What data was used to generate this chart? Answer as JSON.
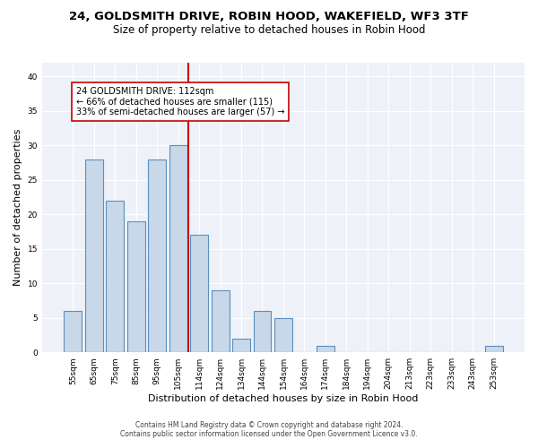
{
  "title": "24, GOLDSMITH DRIVE, ROBIN HOOD, WAKEFIELD, WF3 3TF",
  "subtitle": "Size of property relative to detached houses in Robin Hood",
  "xlabel": "Distribution of detached houses by size in Robin Hood",
  "ylabel": "Number of detached properties",
  "bar_color": "#c8d8e8",
  "bar_edge_color": "#5a8fc0",
  "background_color": "#eef2f8",
  "grid_color": "#ffffff",
  "categories": [
    "55sqm",
    "65sqm",
    "75sqm",
    "85sqm",
    "95sqm",
    "105sqm",
    "114sqm",
    "124sqm",
    "134sqm",
    "144sqm",
    "154sqm",
    "164sqm",
    "174sqm",
    "184sqm",
    "194sqm",
    "204sqm",
    "213sqm",
    "223sqm",
    "233sqm",
    "243sqm",
    "253sqm"
  ],
  "values": [
    6,
    28,
    22,
    19,
    28,
    30,
    17,
    9,
    2,
    6,
    5,
    0,
    1,
    0,
    0,
    0,
    0,
    0,
    0,
    0,
    1
  ],
  "property_line_color": "#cc0000",
  "annotation_line1": "24 GOLDSMITH DRIVE: 112sqm",
  "annotation_line2": "← 66% of detached houses are smaller (115)",
  "annotation_line3": "33% of semi-detached houses are larger (57) →",
  "annotation_box_color": "#cc0000",
  "ylim": [
    0,
    42
  ],
  "yticks": [
    0,
    5,
    10,
    15,
    20,
    25,
    30,
    35,
    40
  ],
  "footer_line1": "Contains HM Land Registry data © Crown copyright and database right 2024.",
  "footer_line2": "Contains public sector information licensed under the Open Government Licence v3.0.",
  "title_fontsize": 9.5,
  "subtitle_fontsize": 8.5,
  "tick_fontsize": 6.5,
  "ylabel_fontsize": 8,
  "xlabel_fontsize": 8,
  "annotation_fontsize": 7,
  "footer_fontsize": 5.5
}
